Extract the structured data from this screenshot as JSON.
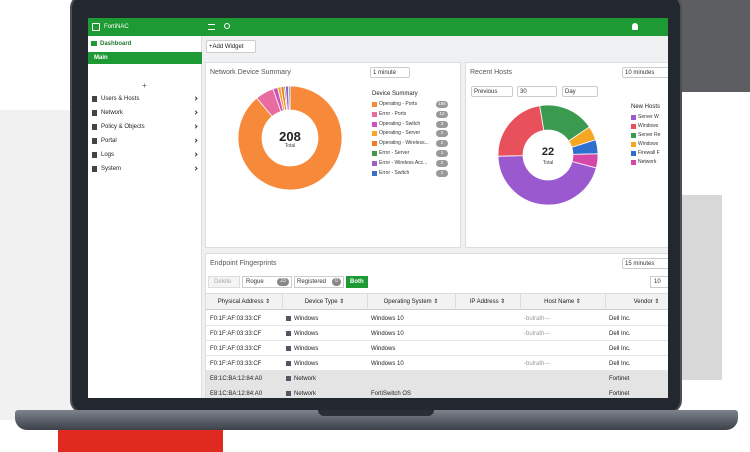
{
  "app": {
    "brand": "FortiNAC"
  },
  "sidebar": {
    "dashboard": "Dashboard",
    "main": "Main",
    "add": "+",
    "items": [
      "Users & Hosts",
      "Network",
      "Policy & Objects",
      "Portal",
      "Logs",
      "System"
    ]
  },
  "toolbar": {
    "add_widget": "+Add Widget"
  },
  "device_widget": {
    "title": "Network Device Summary",
    "interval": "1 minute"
  },
  "hosts_widget": {
    "title": "Recent Hosts",
    "interval": "10 minutes",
    "period": "Previous",
    "count": "30",
    "unit": "Day"
  },
  "chart_data": [
    {
      "type": "pie",
      "title": "Device Summary",
      "total": 208,
      "total_label": "Total",
      "categories": [
        "Operating - Ports",
        "Error - Ports",
        "Operating - Switch",
        "Operating - Server",
        "Operating - Wireless...",
        "Error - Server",
        "Error - Wireless Acc...",
        "Error - Switch"
      ],
      "values": [
        185,
        12,
        3,
        2,
        2,
        1,
        2,
        1
      ],
      "colors": [
        "#f7893b",
        "#e86ca0",
        "#d04fc0",
        "#f5a623",
        "#f07d2e",
        "#3d9a4a",
        "#9a5fc8",
        "#3a6fc4"
      ],
      "show_counts": true
    },
    {
      "type": "pie",
      "title": "New Hosts",
      "total": 22,
      "total_label": "Total",
      "categories": [
        "Server W",
        "Windows",
        "Server Re",
        "Windows",
        "Firewall F",
        "Network"
      ],
      "values": [
        10,
        5,
        4,
        1,
        1,
        1
      ],
      "colors": [
        "#9b59d0",
        "#e8505b",
        "#3a9a50",
        "#f5a623",
        "#2e6fcf",
        "#d548a8"
      ],
      "show_counts": false
    }
  ],
  "endpoints": {
    "title": "Endpoint Fingerprints",
    "interval": "15 minutes",
    "buttons": {
      "delete": "Delete",
      "rogue": "Rogue",
      "rogue_count": "23",
      "registered": "Registered",
      "registered_count": "0",
      "both": "Both"
    },
    "page_size": "10",
    "columns": [
      "Physical Address ⇕",
      "Device Type ⇕",
      "Operating System ⇕",
      "IP Address ⇕",
      "Host Name ⇕",
      "Vendor ⇕"
    ],
    "rows": [
      [
        "F0:1F:AF:03:33:CF",
        "Windows",
        "Windows 10",
        null,
        "-bulrath---",
        "Dell Inc."
      ],
      [
        "F0:1F:AF:03:33:CF",
        "Windows",
        "Windows 10",
        null,
        "-bulrath---",
        "Dell Inc."
      ],
      [
        "F0:1F:AF:03:33:CF",
        "Windows",
        "Windows",
        null,
        null,
        "Dell Inc."
      ],
      [
        "F0:1F:AF:03:33:CF",
        "Windows",
        "Windows 10",
        null,
        "-bulrath---",
        "Dell Inc."
      ],
      [
        "E8:1C:BA:12:84:A0",
        "Network",
        null,
        null,
        null,
        "Fortinet"
      ],
      [
        "E8:1C:BA:12:84:A0",
        "Network",
        "FortiSwitch OS",
        null,
        null,
        "Fortinet"
      ]
    ]
  }
}
